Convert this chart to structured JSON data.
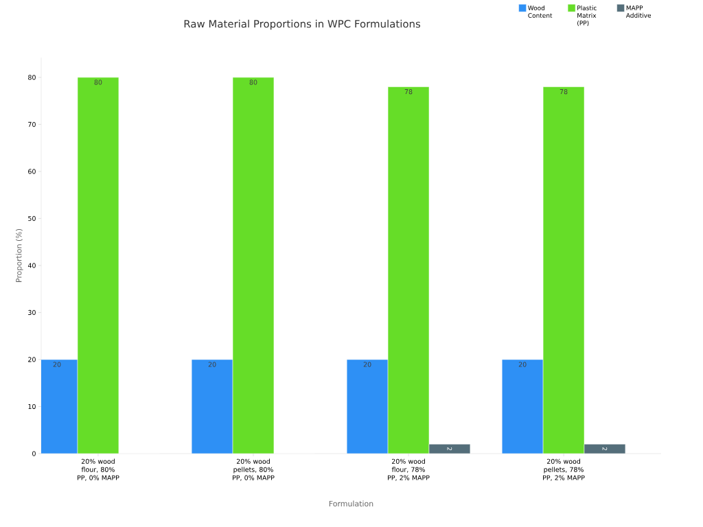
{
  "chart_data": {
    "type": "bar",
    "title": "Raw Material Proportions in WPC Formulations",
    "xlabel": "Formulation",
    "ylabel": "Proportion (%)",
    "categories": [
      "20% wood flour, 80% PP, 0% MAPP",
      "20% wood pellets, 80% PP, 0% MAPP",
      "20% wood flour, 78% PP, 2% MAPP",
      "20% wood pellets, 78% PP, 2% MAPP"
    ],
    "series": [
      {
        "name": "Wood Content",
        "color": "#2e90f5",
        "values": [
          20,
          20,
          20,
          20
        ],
        "value_labels": [
          "20",
          "20",
          "20",
          "20"
        ]
      },
      {
        "name": "Plastic Matrix (PP)",
        "color": "#66dd28",
        "values": [
          80,
          80,
          78,
          78
        ],
        "value_labels": [
          "80",
          "80",
          "78",
          "78"
        ]
      },
      {
        "name": "MAPP Additive",
        "color": "#546e7a",
        "values": [
          0,
          0,
          2,
          2
        ],
        "value_labels": [
          null,
          null,
          "2",
          "2"
        ]
      }
    ],
    "ylim": [
      0,
      84.2
    ],
    "yticks": [
      0,
      10,
      20,
      30,
      40,
      50,
      60,
      70,
      80
    ],
    "grid": false,
    "legend": "top right"
  }
}
